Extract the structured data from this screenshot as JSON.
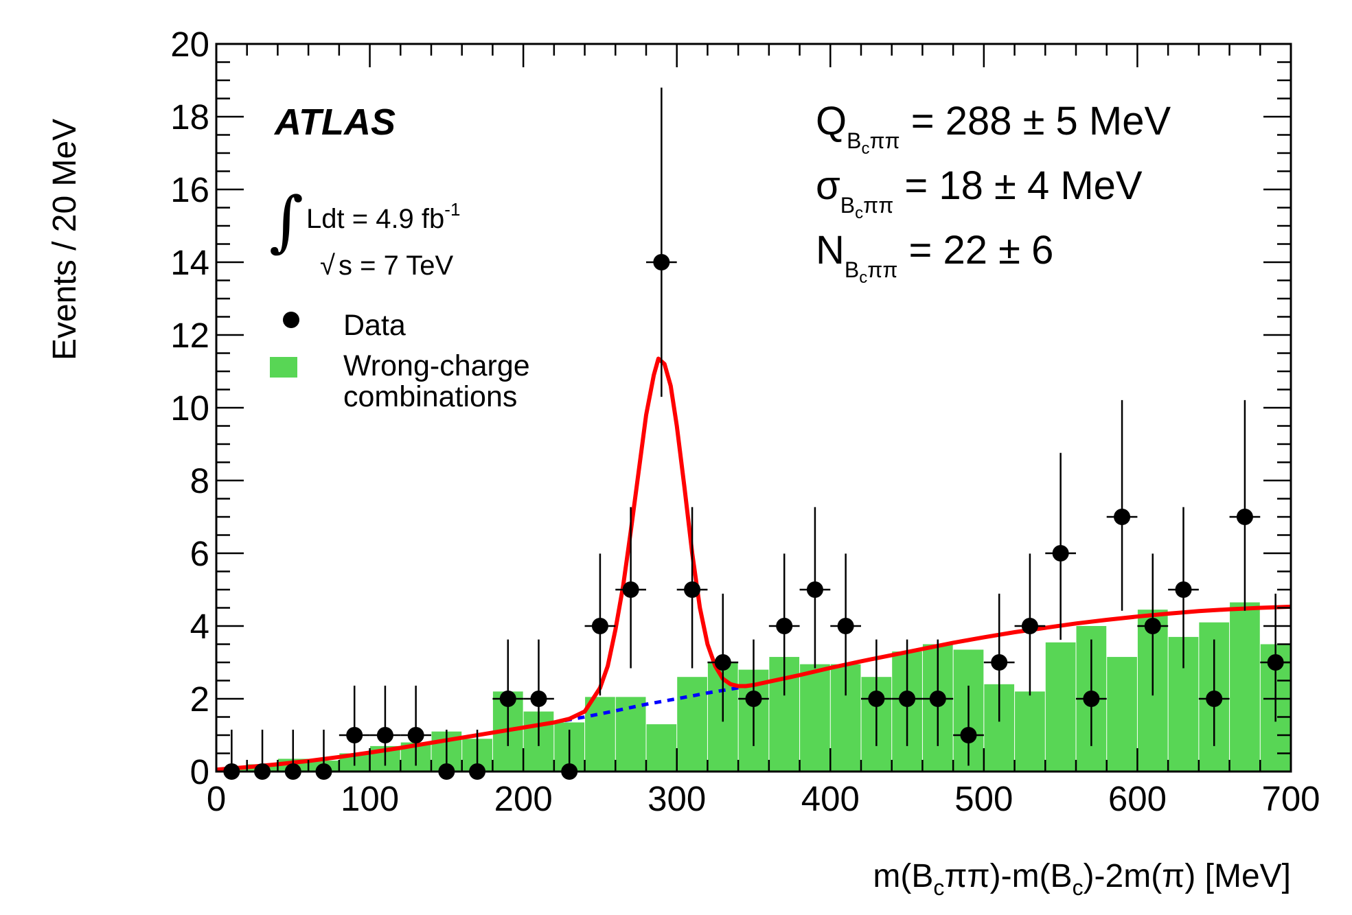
{
  "chart_data": {
    "type": "bar",
    "title": "",
    "xlabel_parts": {
      "a": "m(B",
      "b": "c",
      "c": "ππ)-m(B",
      "d": "c",
      "e": ")-2m(π) [MeV]"
    },
    "ylabel": "Events / 20 MeV",
    "xlim": [
      0,
      700
    ],
    "ylim": [
      0,
      20
    ],
    "x_ticks": [
      "0",
      "100",
      "200",
      "300",
      "400",
      "500",
      "600",
      "700"
    ],
    "y_ticks": [
      "0",
      "2",
      "4",
      "6",
      "8",
      "10",
      "12",
      "14",
      "16",
      "18",
      "20"
    ],
    "grid": false,
    "legend_position": "top-left",
    "experiment_label": "ATLAS",
    "luminosity": {
      "integral_sign": "∫",
      "text": "Ldt = 4.9 fb",
      "exponent": "-1",
      "sqrt_sign": "√",
      "energy": "s = 7 TeV"
    },
    "legend": [
      {
        "label": "Data",
        "marker": "circle",
        "color": "#000000"
      },
      {
        "label_line1": "Wrong-charge",
        "label_line2": "combinations",
        "marker": "box",
        "color": "#58d655"
      }
    ],
    "results": [
      {
        "symbol": "Q",
        "sub": "B",
        "subsub": "c",
        "subtail": "ππ",
        "value": " = 288 ± 5 MeV"
      },
      {
        "symbol": "σ",
        "sub": "B",
        "subsub": "c",
        "subtail": "ππ",
        "value": " = 18 ± 4 MeV"
      },
      {
        "symbol": "N",
        "sub": "B",
        "subsub": "c",
        "subtail": "ππ",
        "value": " = 22 ± 6"
      }
    ],
    "bin_width": 20,
    "series": [
      {
        "name": "Data",
        "kind": "points_with_errors",
        "color": "#000000",
        "x": [
          10,
          30,
          50,
          70,
          90,
          110,
          130,
          150,
          170,
          190,
          210,
          230,
          250,
          270,
          290,
          310,
          330,
          350,
          370,
          390,
          410,
          430,
          450,
          470,
          490,
          510,
          530,
          550,
          570,
          590,
          610,
          630,
          650,
          670,
          690
        ],
        "y": [
          0,
          0,
          0,
          0,
          1,
          1,
          1,
          0,
          0,
          2,
          2,
          0,
          4,
          5,
          14,
          5,
          3,
          2,
          4,
          5,
          4,
          2,
          2,
          2,
          1,
          3,
          4,
          6,
          2,
          7,
          4,
          5,
          2,
          7,
          3
        ],
        "err_up": [
          1.15,
          1.15,
          1.15,
          1.15,
          1.36,
          1.36,
          1.36,
          1.15,
          1.15,
          1.63,
          1.63,
          1.15,
          1.99,
          2.27,
          4.8,
          2.27,
          1.89,
          1.63,
          1.99,
          2.27,
          1.99,
          1.63,
          1.63,
          1.63,
          1.36,
          1.89,
          1.99,
          2.76,
          1.63,
          3.21,
          1.99,
          2.27,
          1.63,
          3.21,
          1.89
        ],
        "err_down": [
          0,
          0,
          0,
          0,
          0.84,
          0.84,
          0.84,
          0,
          0,
          1.3,
          1.3,
          0,
          1.91,
          2.16,
          3.7,
          2.16,
          1.63,
          1.3,
          1.91,
          2.16,
          1.91,
          1.3,
          1.3,
          1.3,
          0.84,
          1.63,
          1.91,
          2.38,
          1.3,
          2.58,
          1.91,
          2.16,
          1.3,
          2.58,
          1.63
        ]
      },
      {
        "name": "Wrong-charge combinations",
        "kind": "histogram",
        "color": "#58d655",
        "x_low": [
          0,
          20,
          40,
          60,
          80,
          100,
          120,
          140,
          160,
          180,
          200,
          220,
          240,
          260,
          280,
          300,
          320,
          340,
          360,
          380,
          400,
          420,
          440,
          460,
          480,
          500,
          520,
          540,
          560,
          580,
          600,
          620,
          640,
          660,
          680
        ],
        "values": [
          0.1,
          0.2,
          0.35,
          0.3,
          0.5,
          0.7,
          0.8,
          1.1,
          0.9,
          2.2,
          1.65,
          1.35,
          2.05,
          2.05,
          1.3,
          2.6,
          3.0,
          2.8,
          3.15,
          2.95,
          2.95,
          2.6,
          3.3,
          3.5,
          3.35,
          2.4,
          2.2,
          3.55,
          4.0,
          3.15,
          4.45,
          3.7,
          4.1,
          4.65,
          3.5
        ]
      },
      {
        "name": "Fit",
        "kind": "line",
        "color": "#ff0000",
        "x": [
          0,
          20,
          40,
          60,
          80,
          100,
          120,
          140,
          160,
          180,
          200,
          220,
          230,
          240,
          250,
          255,
          260,
          265,
          270,
          275,
          280,
          285,
          288,
          292,
          296,
          300,
          305,
          310,
          315,
          320,
          325,
          330,
          335,
          340,
          345,
          350,
          360,
          380,
          400,
          420,
          440,
          460,
          480,
          500,
          520,
          540,
          560,
          580,
          600,
          620,
          640,
          660,
          680,
          700
        ],
        "y": [
          0.05,
          0.12,
          0.2,
          0.29,
          0.4,
          0.52,
          0.65,
          0.79,
          0.93,
          1.07,
          1.21,
          1.35,
          1.45,
          1.65,
          2.3,
          2.9,
          3.9,
          5.1,
          6.6,
          8.2,
          9.8,
          10.9,
          11.35,
          11.2,
          10.6,
          9.5,
          7.8,
          6.0,
          4.5,
          3.5,
          2.9,
          2.55,
          2.4,
          2.35,
          2.35,
          2.38,
          2.47,
          2.65,
          2.85,
          3.03,
          3.2,
          3.37,
          3.54,
          3.69,
          3.83,
          3.95,
          4.07,
          4.17,
          4.26,
          4.34,
          4.41,
          4.46,
          4.5,
          4.53
        ]
      },
      {
        "name": "Background",
        "kind": "dashed_line",
        "color": "#0000ff",
        "x": [
          0,
          20,
          40,
          60,
          80,
          100,
          120,
          140,
          160,
          180,
          200,
          220,
          240,
          260,
          280,
          300,
          320,
          340,
          360,
          380,
          400,
          420,
          440,
          460,
          480,
          500,
          520,
          540,
          560,
          580,
          600,
          620,
          640,
          660,
          680,
          700
        ],
        "y": [
          0.05,
          0.12,
          0.2,
          0.29,
          0.4,
          0.52,
          0.65,
          0.79,
          0.93,
          1.07,
          1.21,
          1.35,
          1.5,
          1.67,
          1.85,
          2.0,
          2.16,
          2.3,
          2.47,
          2.65,
          2.85,
          3.03,
          3.2,
          3.37,
          3.54,
          3.69,
          3.83,
          3.95,
          4.07,
          4.17,
          4.26,
          4.34,
          4.41,
          4.46,
          4.5,
          4.53
        ]
      }
    ]
  }
}
